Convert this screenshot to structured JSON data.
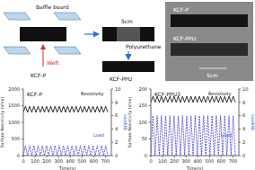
{
  "diagram": {
    "left": {
      "labels": [
        "Baffle board",
        "Weft"
      ],
      "caption": "KCF-P"
    },
    "middle": {
      "top_caption": "5cm",
      "label": "Polyurethane",
      "caption": "KCF-PPU"
    },
    "photo": {
      "strips": [
        "KCF-P",
        "KCF-PPU"
      ],
      "scale": "5cm"
    }
  },
  "chart_data": [
    {
      "type": "line",
      "title": "KCF-P",
      "x_label": "Time(s)",
      "y_label": "Surface Resistivity (ohm)",
      "y2_label": "Load(N)",
      "x": [
        0,
        18,
        36,
        54,
        72,
        90,
        108,
        126,
        144,
        162,
        180,
        198,
        216,
        234,
        252,
        270,
        288,
        306,
        324,
        342,
        360,
        378,
        396,
        414,
        432,
        450,
        468,
        486,
        504,
        522,
        540,
        558,
        576,
        594,
        612,
        630,
        648,
        666,
        684,
        702,
        720
      ],
      "xlim": [
        0,
        750
      ],
      "xticks": [
        0,
        100,
        200,
        300,
        400,
        500,
        600,
        700
      ],
      "ylim": [
        0,
        2000
      ],
      "yticks": [
        0,
        500,
        1000,
        1500,
        2000
      ],
      "y2lim": [
        0,
        10
      ],
      "y2ticks": [
        0,
        2,
        4,
        6,
        8,
        10
      ],
      "series": [
        {
          "name": "Resistivity",
          "color": "#000000",
          "line_style": "solid",
          "values": [
            1300,
            1480,
            1300,
            1480,
            1300,
            1480,
            1300,
            1480,
            1300,
            1480,
            1300,
            1480,
            1300,
            1480,
            1300,
            1480,
            1300,
            1480,
            1300,
            1480,
            1300,
            1480,
            1300,
            1480,
            1300,
            1480,
            1300,
            1480,
            1300,
            1480,
            1300,
            1480,
            1300,
            1480,
            1300,
            1480,
            1300,
            1480,
            1300,
            1480,
            1300
          ]
        },
        {
          "name": "Load",
          "color": "#3b3bd6",
          "axis": "y2",
          "line_style": "dashed",
          "values": [
            0,
            1.5,
            0,
            1.5,
            0,
            1.5,
            0,
            1.5,
            0,
            1.5,
            0,
            1.5,
            0,
            1.5,
            0,
            1.5,
            0,
            1.5,
            0,
            1.5,
            0,
            1.5,
            0,
            1.5,
            0,
            1.5,
            0,
            1.5,
            0,
            1.5,
            0,
            1.5,
            0,
            1.5,
            0,
            1.5,
            0,
            1.5,
            0,
            1.5,
            0
          ]
        }
      ]
    },
    {
      "type": "line",
      "title": "KCF-PPU3",
      "x_label": "Time(s)",
      "y_label": "Surface Resistivity (ohm)",
      "y2_label": "Load(N)",
      "x": [
        0,
        18,
        36,
        54,
        72,
        90,
        108,
        126,
        144,
        162,
        180,
        198,
        216,
        234,
        252,
        270,
        288,
        306,
        324,
        342,
        360,
        378,
        396,
        414,
        432,
        450,
        468,
        486,
        504,
        522,
        540,
        558,
        576,
        594,
        612,
        630,
        648,
        666,
        684,
        702,
        720
      ],
      "xlim": [
        0,
        750
      ],
      "xticks": [
        0,
        100,
        200,
        300,
        400,
        500,
        600,
        700
      ],
      "ylim": [
        0,
        200
      ],
      "yticks": [
        0,
        50,
        100,
        150,
        200
      ],
      "y2lim": [
        0,
        10
      ],
      "y2ticks": [
        0,
        2,
        4,
        6,
        8,
        10
      ],
      "series": [
        {
          "name": "Resistivity",
          "color": "#000000",
          "line_style": "solid",
          "values": [
            160,
            178,
            160,
            178,
            160,
            178,
            160,
            178,
            160,
            178,
            160,
            178,
            160,
            178,
            160,
            178,
            160,
            178,
            160,
            178,
            160,
            178,
            160,
            178,
            160,
            178,
            160,
            178,
            160,
            178,
            160,
            178,
            160,
            178,
            160,
            178,
            160,
            178,
            160,
            178,
            160
          ]
        },
        {
          "name": "Load",
          "color": "#3b3bd6",
          "axis": "y2",
          "line_style": "dashed",
          "values": [
            0,
            6,
            0,
            6,
            0,
            6,
            0,
            6,
            0,
            6,
            0,
            6,
            0,
            6,
            0,
            6,
            0,
            6,
            0,
            6,
            0,
            6,
            0,
            6,
            0,
            6,
            0,
            6,
            0,
            6,
            0,
            6,
            0,
            6,
            0,
            6,
            0,
            6,
            0,
            6,
            0
          ]
        }
      ]
    }
  ]
}
